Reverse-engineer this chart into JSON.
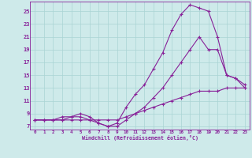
{
  "xlabel": "Windchill (Refroidissement éolien,°C)",
  "xlim": [
    -0.5,
    23.5
  ],
  "ylim": [
    6.5,
    26.5
  ],
  "yticks": [
    7,
    9,
    11,
    13,
    15,
    17,
    19,
    21,
    23,
    25
  ],
  "xticks": [
    0,
    1,
    2,
    3,
    4,
    5,
    6,
    7,
    8,
    9,
    10,
    11,
    12,
    13,
    14,
    15,
    16,
    17,
    18,
    19,
    20,
    21,
    22,
    23
  ],
  "bg_color": "#ceeaea",
  "grid_color": "#aad4d4",
  "line_color": "#882299",
  "line1_x": [
    0,
    1,
    2,
    3,
    4,
    5,
    6,
    7,
    8,
    9,
    10,
    11,
    12,
    13,
    14,
    15,
    16,
    17,
    18,
    19,
    20,
    21,
    22,
    23
  ],
  "line1_y": [
    8,
    8,
    8,
    8,
    8,
    8,
    8,
    8,
    8,
    8,
    8.5,
    9,
    9.5,
    10,
    10.5,
    11,
    11.5,
    12,
    12.5,
    12.5,
    12.5,
    13,
    13,
    13
  ],
  "line2_x": [
    0,
    1,
    2,
    3,
    4,
    5,
    6,
    7,
    8,
    9,
    10,
    11,
    12,
    13,
    14,
    15,
    16,
    17,
    18,
    19,
    20,
    21,
    22,
    23
  ],
  "line2_y": [
    8,
    8,
    8,
    8.5,
    8.5,
    9,
    8.5,
    7.5,
    7,
    7.5,
    10,
    12,
    13.5,
    16,
    18.5,
    22,
    24.5,
    26,
    25.5,
    25,
    21,
    15,
    14.5,
    13
  ],
  "line3_x": [
    0,
    1,
    2,
    3,
    4,
    5,
    6,
    7,
    8,
    9,
    10,
    11,
    12,
    13,
    14,
    15,
    16,
    17,
    18,
    19,
    20,
    21,
    22,
    23
  ],
  "line3_y": [
    8,
    8,
    8,
    8,
    8.5,
    8.5,
    8,
    7.5,
    7,
    7,
    8,
    9,
    10,
    11.5,
    13,
    15,
    17,
    19,
    21,
    19,
    19,
    15,
    14.5,
    13.5
  ]
}
